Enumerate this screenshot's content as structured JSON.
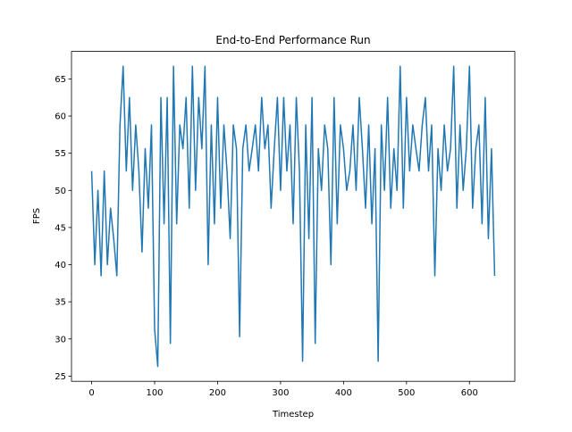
{
  "chart_data": {
    "type": "line",
    "title": "End-to-End Performance Run",
    "xlabel": "Timestep",
    "ylabel": "FPS",
    "x": [
      0,
      5,
      10,
      15,
      20,
      25,
      30,
      35,
      40,
      45,
      50,
      55,
      60,
      65,
      70,
      75,
      80,
      85,
      90,
      95,
      100,
      105,
      110,
      115,
      120,
      125,
      130,
      135,
      140,
      145,
      150,
      155,
      160,
      165,
      170,
      175,
      180,
      185,
      190,
      195,
      200,
      205,
      210,
      215,
      220,
      225,
      230,
      235,
      240,
      245,
      250,
      255,
      260,
      265,
      270,
      275,
      280,
      285,
      290,
      295,
      300,
      305,
      310,
      315,
      320,
      325,
      330,
      335,
      340,
      345,
      350,
      355,
      360,
      365,
      370,
      375,
      380,
      385,
      390,
      395,
      400,
      405,
      410,
      415,
      420,
      425,
      430,
      435,
      440,
      445,
      450,
      455,
      460,
      465,
      470,
      475,
      480,
      485,
      490,
      495,
      500,
      505,
      510,
      515,
      520,
      525,
      530,
      535,
      540,
      545,
      550,
      555,
      560,
      565,
      570,
      575,
      580,
      585,
      590,
      595,
      600,
      605,
      610,
      615,
      620,
      625,
      630,
      635,
      640
    ],
    "series": [
      {
        "name": "FPS",
        "color": "#1f77b4",
        "values": [
          52.6,
          40,
          50,
          38.5,
          52.6,
          40,
          47.6,
          43.5,
          38.5,
          58.8,
          66.7,
          52.6,
          62.5,
          50,
          58.8,
          52.6,
          41.7,
          55.6,
          47.6,
          58.8,
          31.3,
          26.3,
          62.5,
          45.5,
          62.5,
          29.4,
          66.7,
          45.5,
          58.8,
          55.6,
          62.5,
          47.6,
          66.7,
          50,
          62.5,
          55.6,
          66.7,
          40,
          58.8,
          45.5,
          62.5,
          47.6,
          58.8,
          52.6,
          43.5,
          58.8,
          55.6,
          30.3,
          55.6,
          58.8,
          52.6,
          55.6,
          58.8,
          52.6,
          62.5,
          55.6,
          58.8,
          47.6,
          55.6,
          62.5,
          50,
          62.5,
          52.6,
          58.8,
          45.5,
          62.5,
          52.6,
          27,
          58.8,
          43.5,
          62.5,
          29.4,
          55.6,
          50,
          58.8,
          55.6,
          40,
          62.5,
          45.5,
          58.8,
          55.6,
          50,
          52.6,
          58.8,
          50,
          62.5,
          55.6,
          47.6,
          58.8,
          45.5,
          55.6,
          27,
          58.8,
          50,
          62.5,
          47.6,
          55.6,
          50,
          66.7,
          47.6,
          62.5,
          52.6,
          58.8,
          55.6,
          52.6,
          58.8,
          62.5,
          52.6,
          58.8,
          38.5,
          55.6,
          50,
          58.8,
          52.6,
          55.6,
          66.7,
          47.6,
          58.8,
          50,
          55.6,
          66.7,
          47.6,
          55.6,
          58.8,
          45.5,
          62.5,
          43.5,
          55.6,
          38.5
        ]
      }
    ],
    "xlim": [
      -32,
      672
    ],
    "ylim": [
      24.3,
      68.7
    ],
    "xticks": [
      0,
      100,
      200,
      300,
      400,
      500,
      600
    ],
    "yticks": [
      25,
      30,
      35,
      40,
      45,
      50,
      55,
      60,
      65
    ]
  }
}
